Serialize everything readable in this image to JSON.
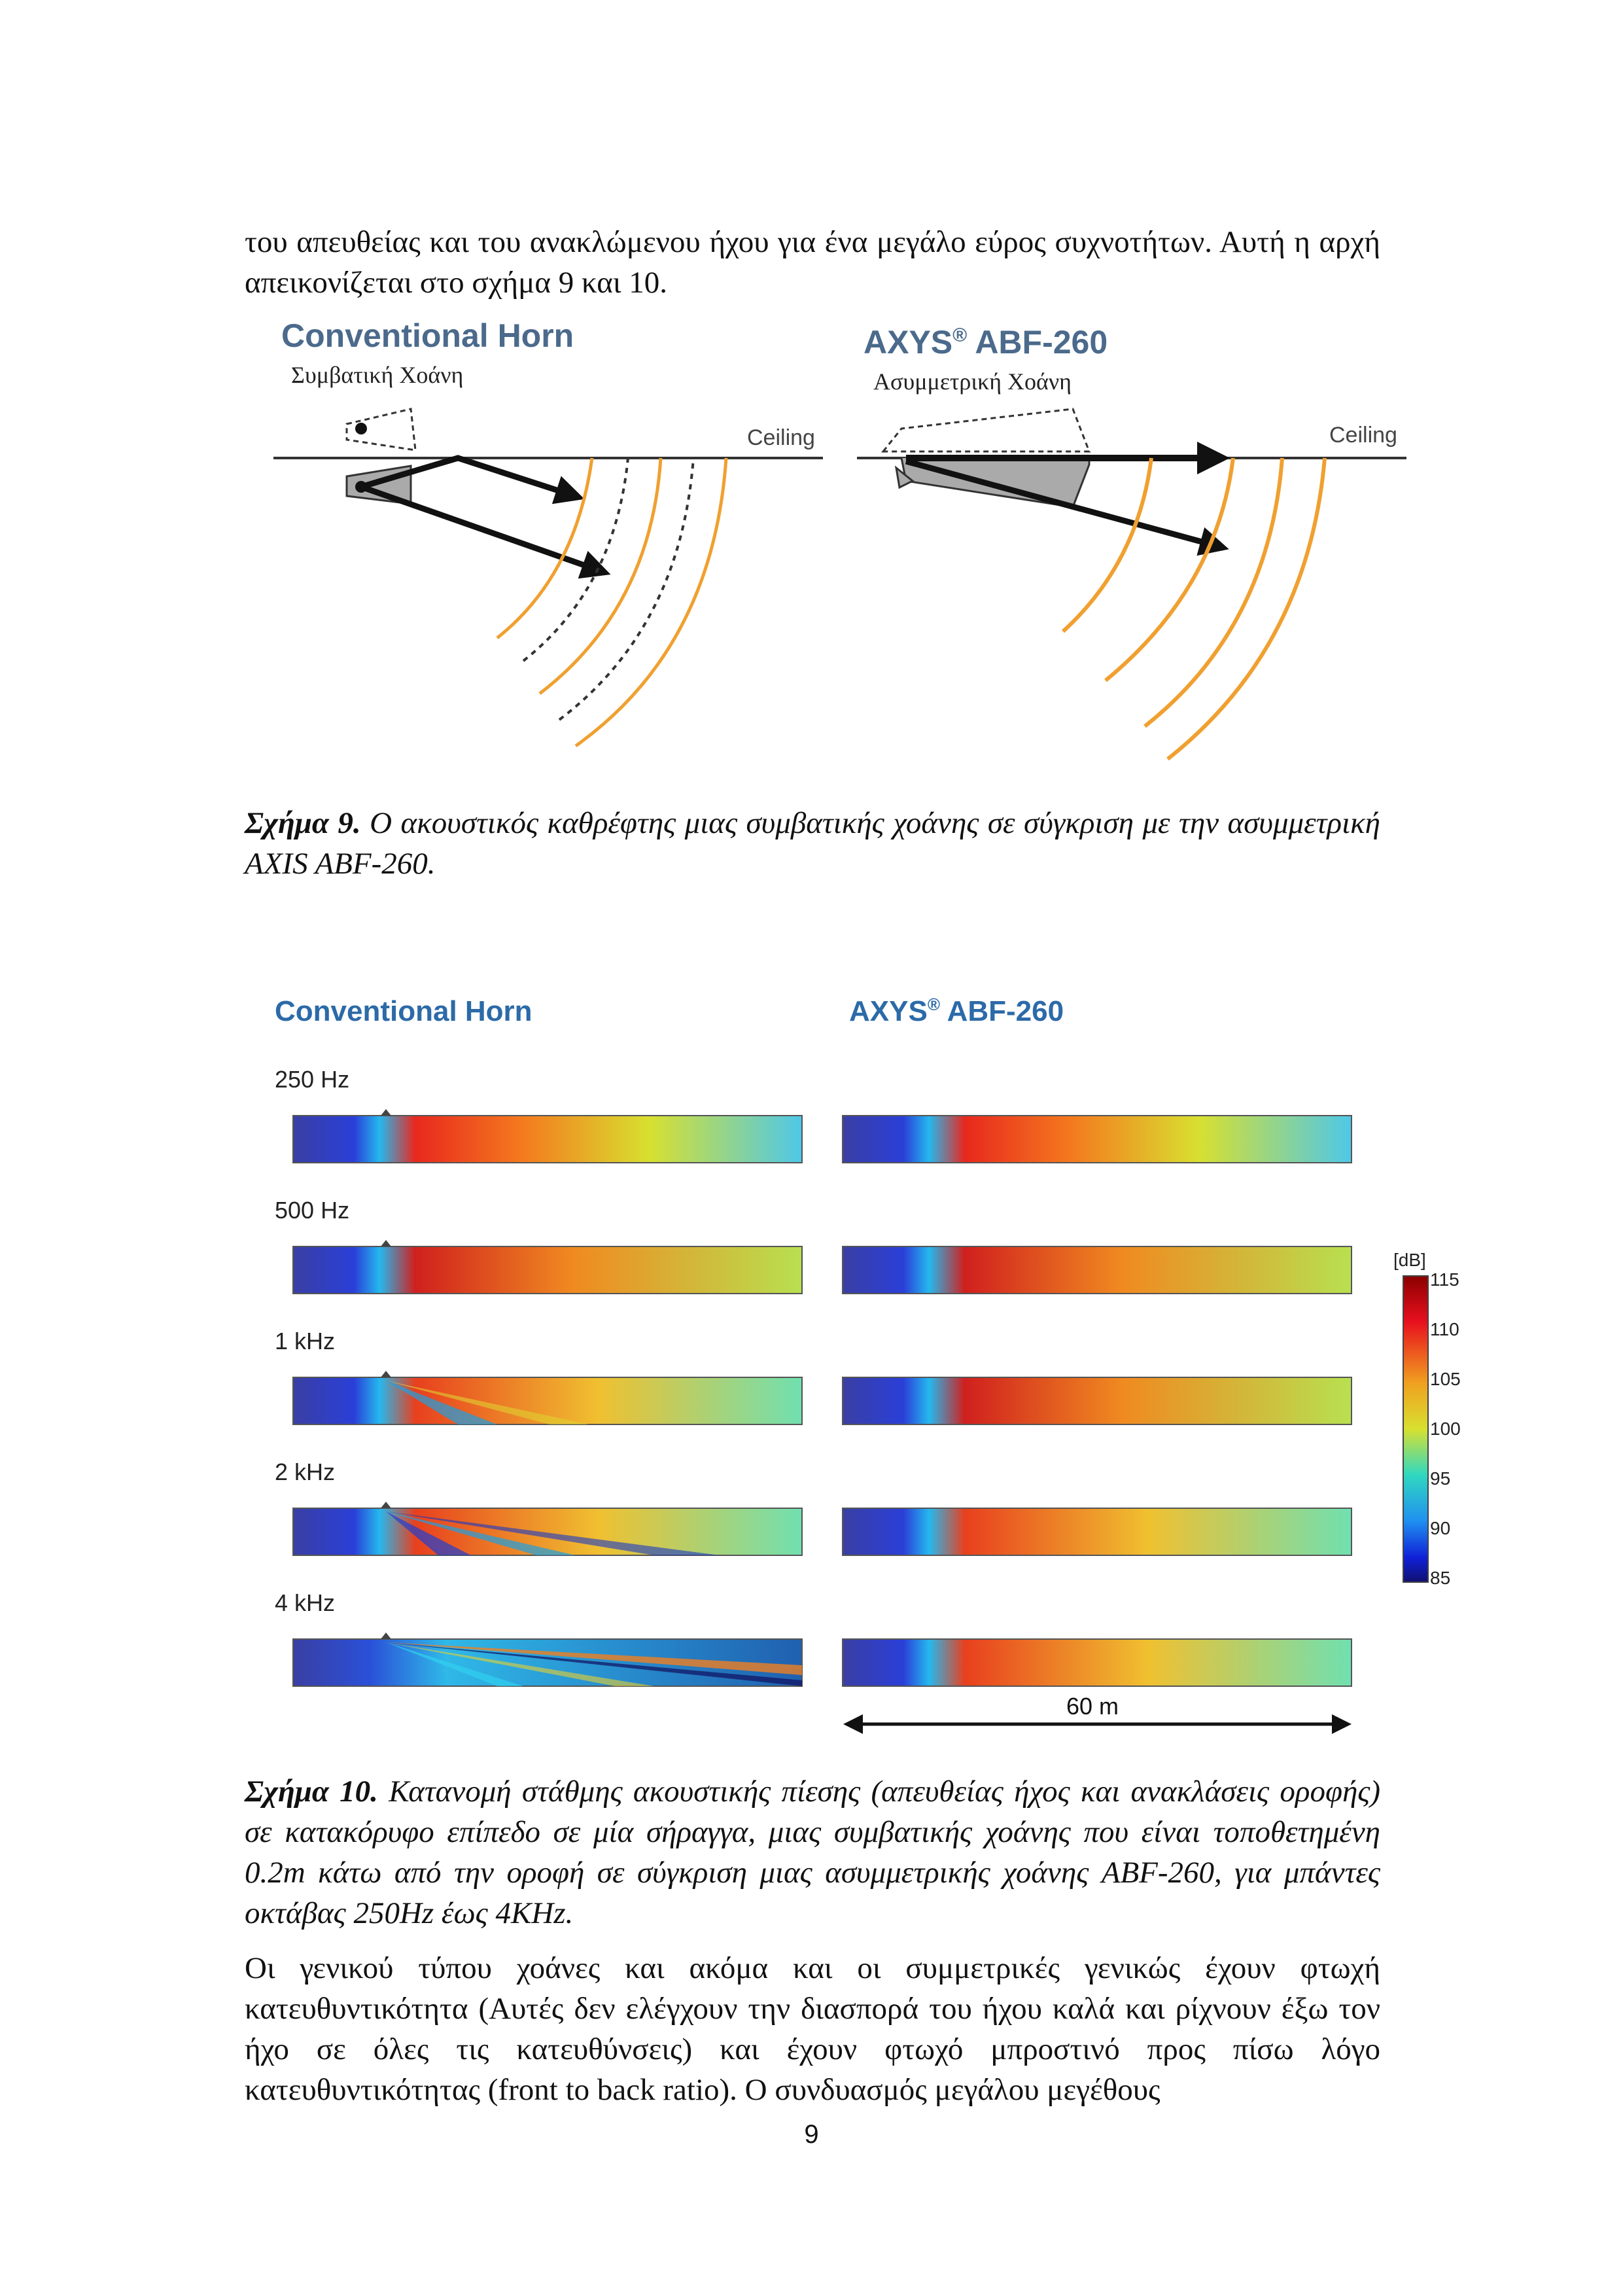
{
  "intro_paragraph": "του απευθείας και του ανακλώμενου ήχου για ένα μεγάλο εύρος συχνοτήτων. Αυτή η αρχή απεικονίζεται στο σχήμα 9 και 10.",
  "figure9": {
    "left": {
      "title": "Conventional Horn",
      "subtitle": "Συμβατική Χοάνη",
      "ceiling": "Ceiling"
    },
    "right": {
      "title": "AXYS",
      "title_mark": "®",
      "title_rest": " ABF-260",
      "subtitle": "Ασυμμετρική Χοάνη",
      "ceiling": "Ceiling"
    },
    "caption_label": "Σχήμα 9.",
    "caption_text": " Ο ακουστικός καθρέφτης μιας συμβατικής χοάνης σε σύγκριση με την ασυμμετρική AXIS ABF-260."
  },
  "figure10": {
    "left_title": "Conventional Horn",
    "right_title": "AXYS",
    "right_title_mark": "®",
    "right_title_rest": " ABF-260",
    "bands": [
      "250 Hz",
      "500 Hz",
      "1 kHz",
      "2 kHz",
      "4 kHz"
    ],
    "colorbar": {
      "unit": "[dB]",
      "ticks": [
        "115",
        "110",
        "105",
        "100",
        "95",
        "90",
        "85"
      ]
    },
    "scale_label": "60 m",
    "caption_label": "Σχήμα 10.",
    "caption_text": " Κατανομή στάθμης ακουστικής πίεσης (απευθείας ήχος και ανακλάσεις οροφής) σε κατακόρυφο επίπεδο σε μία σήραγγα, μιας συμβατικής χοάνης που είναι τοποθετημένη 0.2m κάτω από την οροφή σε σύγκριση μιας ασυμμετρικής χοάνης ABF-260, για μπάντες οκτάβας 250Hz έως 4KHz."
  },
  "closing_paragraph": "Οι γενικού τύπου χοάνες και ακόμα και οι συμμετρικές γενικώς έχουν φτωχή κατευθυντικότητα (Αυτές δεν ελέγχουν την διασπορά του ήχου καλά και ρίχνουν έξω τον ήχο σε όλες τις κατευθύνσεις) και έχουν φτωχό μπροστινό προς πίσω λόγο κατευθυντικότητας (front to back ratio). Ο συνδυασμός μεγάλου μεγέθους",
  "page_number": "9"
}
